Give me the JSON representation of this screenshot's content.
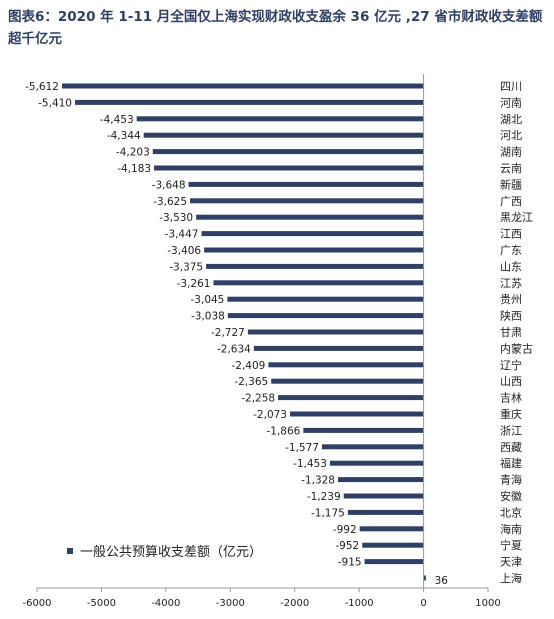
{
  "title": "图表6：2020 年 1-11 月全国仅上海实现财政收支盈余 36 亿元 ,27 省市财政收支差额超千亿元",
  "colors": {
    "bar": "#2f3f66",
    "title": "#2f3f66"
  },
  "chart_data": {
    "type": "bar",
    "orientation": "horizontal",
    "categories": [
      "四川",
      "河南",
      "湖北",
      "河北",
      "湖南",
      "云南",
      "新疆",
      "广西",
      "黑龙江",
      "江西",
      "广东",
      "山东",
      "江苏",
      "贵州",
      "陕西",
      "甘肃",
      "内蒙古",
      "辽宁",
      "山西",
      "吉林",
      "重庆",
      "浙江",
      "西藏",
      "福建",
      "青海",
      "安徽",
      "北京",
      "海南",
      "宁夏",
      "天津",
      "上海"
    ],
    "values": [
      -5612,
      -5410,
      -4453,
      -4344,
      -4203,
      -4183,
      -3648,
      -3625,
      -3530,
      -3447,
      -3406,
      -3375,
      -3261,
      -3045,
      -3038,
      -2727,
      -2634,
      -2409,
      -2365,
      -2258,
      -2073,
      -1866,
      -1577,
      -1453,
      -1328,
      -1239,
      -1175,
      -992,
      -952,
      -915,
      36
    ],
    "data_labels": [
      "-5,612",
      "-5,410",
      "-4,453",
      "-4,344",
      "-4,203",
      "-4,183",
      "-3,648",
      "-3,625",
      "-3,530",
      "-3,447",
      "-3,406",
      "-3,375",
      "-3,261",
      "-3,045",
      "-3,038",
      "-2,727",
      "-2,634",
      "-2,409",
      "-2,365",
      "-2,258",
      "-2,073",
      "-1,866",
      "-1,577",
      "-1,453",
      "-1,328",
      "-1,239",
      "-1,175",
      "-992",
      "-952",
      "-915",
      "36"
    ],
    "xlim": [
      -6000,
      1000
    ],
    "xticks": [
      -6000,
      -5000,
      -4000,
      -3000,
      -2000,
      -1000,
      0,
      1000
    ],
    "legend": {
      "label": "一般公共预算收支差额（亿元）",
      "position": "bottom-left"
    },
    "grid": false
  }
}
